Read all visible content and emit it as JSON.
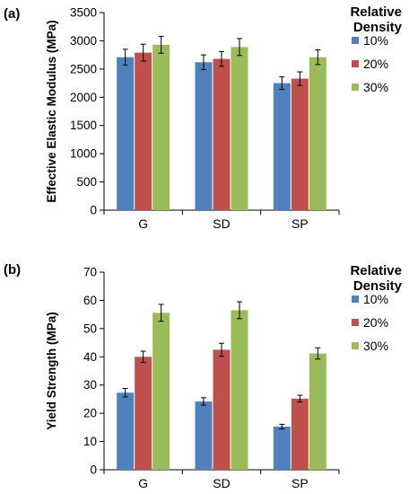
{
  "chart_data": [
    {
      "type": "bar",
      "panel_label": "(a)",
      "title": "",
      "xlabel": "",
      "ylabel": "Effective Elastic Modulus (MPa)",
      "ylim": [
        0,
        3500
      ],
      "yticks": [
        0,
        500,
        1000,
        1500,
        2000,
        2500,
        3000,
        3500
      ],
      "categories": [
        "G",
        "SD",
        "SP"
      ],
      "legend_title": [
        "Relative",
        "Density"
      ],
      "legend_position": "right",
      "series": [
        {
          "name": "10%",
          "color": "#4f81bd",
          "values": [
            2710,
            2620,
            2250
          ],
          "errors": [
            140,
            130,
            110
          ]
        },
        {
          "name": "20%",
          "color": "#c0504d",
          "values": [
            2790,
            2680,
            2330
          ],
          "errors": [
            150,
            130,
            120
          ]
        },
        {
          "name": "30%",
          "color": "#9bbb59",
          "values": [
            2930,
            2890,
            2710
          ],
          "errors": [
            150,
            150,
            130
          ]
        }
      ],
      "grid": false
    },
    {
      "type": "bar",
      "panel_label": "(b)",
      "title": "",
      "xlabel": "",
      "ylabel": "Yield Strength (MPa)",
      "ylim": [
        0,
        70
      ],
      "yticks": [
        0,
        10,
        20,
        30,
        40,
        50,
        60,
        70
      ],
      "categories": [
        "G",
        "SD",
        "SP"
      ],
      "legend_title": [
        "Relative",
        "Density"
      ],
      "legend_position": "right",
      "series": [
        {
          "name": "10%",
          "color": "#4f81bd",
          "values": [
            27.3,
            24.2,
            15.3
          ],
          "errors": [
            1.5,
            1.3,
            0.8
          ]
        },
        {
          "name": "20%",
          "color": "#c0504d",
          "values": [
            40.0,
            42.5,
            25.2
          ],
          "errors": [
            2.0,
            2.3,
            1.2
          ]
        },
        {
          "name": "30%",
          "color": "#9bbb59",
          "values": [
            55.6,
            56.5,
            41.2
          ],
          "errors": [
            3.0,
            3.0,
            2.0
          ]
        }
      ],
      "grid": false
    }
  ]
}
